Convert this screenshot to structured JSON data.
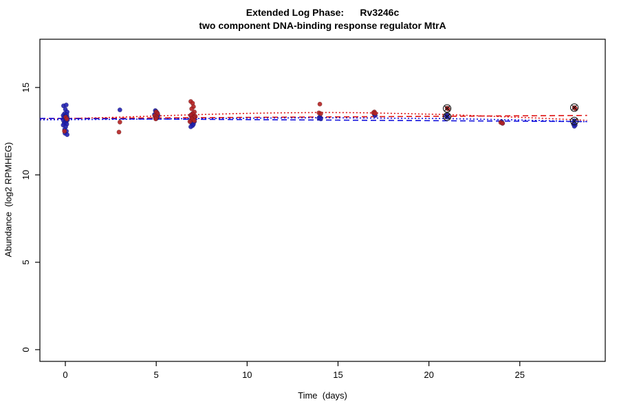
{
  "chart_data": {
    "type": "scatter",
    "title": "Extended Log Phase:      Rv3246c",
    "subtitle": "two component DNA-binding response regulator MtrA",
    "xlabel": "Time  (days)",
    "ylabel": "Abundance  (log2 RPMHEG)",
    "xlim": [
      -1.4,
      29.7
    ],
    "ylim": [
      -0.67,
      17.76
    ],
    "xticks": [
      0,
      5,
      10,
      15,
      20,
      25
    ],
    "yticks": [
      0,
      5,
      10,
      15
    ],
    "grid": false,
    "legend": "none",
    "colors": {
      "blue_points": "#2222b2",
      "red_points": "#b22222",
      "blue_line": "#1111dd",
      "red_line": "#dd1111",
      "axis": "#000000",
      "outlier_mark": "#111111"
    },
    "series": [
      {
        "name": "blue-replicates",
        "color": "#2222b2",
        "points": [
          [
            -0.1,
            13.95
          ],
          [
            0.05,
            14.0
          ],
          [
            0.0,
            13.75
          ],
          [
            0.1,
            13.6
          ],
          [
            -0.05,
            13.5
          ],
          [
            0.08,
            13.45
          ],
          [
            -0.12,
            13.4
          ],
          [
            0.0,
            13.35
          ],
          [
            0.1,
            13.3
          ],
          [
            -0.08,
            13.28
          ],
          [
            0.03,
            13.22
          ],
          [
            -0.03,
            13.18
          ],
          [
            0.12,
            13.15
          ],
          [
            -0.1,
            13.1
          ],
          [
            0.05,
            13.05
          ],
          [
            0.0,
            13.0
          ],
          [
            -0.06,
            12.95
          ],
          [
            0.08,
            12.9
          ],
          [
            -0.12,
            12.85
          ],
          [
            0.02,
            12.75
          ],
          [
            -0.04,
            12.6
          ],
          [
            0.06,
            12.5
          ],
          [
            -0.02,
            12.38
          ],
          [
            0.1,
            12.3
          ],
          [
            3.0,
            13.72
          ],
          [
            4.95,
            13.68
          ],
          [
            5.0,
            13.62
          ],
          [
            5.05,
            13.55
          ],
          [
            4.9,
            13.45
          ],
          [
            5.1,
            13.4
          ],
          [
            5.0,
            13.35
          ],
          [
            4.95,
            13.3
          ],
          [
            5.05,
            13.28
          ],
          [
            5.0,
            13.22
          ],
          [
            7.0,
            13.5
          ],
          [
            6.9,
            13.4
          ],
          [
            7.1,
            13.32
          ],
          [
            6.95,
            13.25
          ],
          [
            7.05,
            13.2
          ],
          [
            7.0,
            13.15
          ],
          [
            6.9,
            13.1
          ],
          [
            7.1,
            13.05
          ],
          [
            7.0,
            13.0
          ],
          [
            6.95,
            12.95
          ],
          [
            7.05,
            12.9
          ],
          [
            7.0,
            12.82
          ],
          [
            6.9,
            12.75
          ],
          [
            14.0,
            13.32
          ],
          [
            13.95,
            13.25
          ],
          [
            14.05,
            13.2
          ],
          [
            17.0,
            13.45
          ],
          [
            17.05,
            13.4
          ],
          [
            21.0,
            13.42
          ],
          [
            20.95,
            13.35
          ],
          [
            21.05,
            13.3
          ],
          [
            24.0,
            13.05
          ],
          [
            24.05,
            12.95
          ],
          [
            28.0,
            13.1
          ],
          [
            27.95,
            12.9
          ],
          [
            28.05,
            12.85
          ],
          [
            28.0,
            12.78
          ]
        ]
      },
      {
        "name": "red-replicates",
        "color": "#b22222",
        "points": [
          [
            0.02,
            13.3
          ],
          [
            -0.05,
            12.5
          ],
          [
            0.08,
            13.2
          ],
          [
            2.95,
            12.45
          ],
          [
            3.0,
            13.02
          ],
          [
            5.0,
            13.6
          ],
          [
            5.08,
            13.5
          ],
          [
            4.92,
            13.38
          ],
          [
            5.02,
            13.3
          ],
          [
            4.97,
            13.2
          ],
          [
            6.9,
            14.2
          ],
          [
            7.0,
            14.1
          ],
          [
            7.05,
            13.9
          ],
          [
            6.95,
            13.78
          ],
          [
            7.1,
            13.6
          ],
          [
            7.0,
            13.5
          ],
          [
            6.9,
            13.42
          ],
          [
            7.15,
            13.35
          ],
          [
            7.05,
            13.28
          ],
          [
            6.95,
            13.22
          ],
          [
            7.0,
            13.15
          ],
          [
            7.1,
            13.1
          ],
          [
            6.85,
            13.05
          ],
          [
            14.0,
            14.05
          ],
          [
            13.95,
            13.55
          ],
          [
            14.05,
            13.5
          ],
          [
            17.0,
            13.6
          ],
          [
            16.95,
            13.55
          ],
          [
            17.05,
            13.52
          ],
          [
            21.0,
            13.82
          ],
          [
            21.05,
            13.78
          ],
          [
            23.95,
            13.0
          ],
          [
            24.05,
            12.95
          ],
          [
            28.0,
            13.85
          ],
          [
            28.05,
            13.8
          ]
        ]
      }
    ],
    "trend_lines": [
      {
        "name": "red-loess",
        "color": "#dd1111",
        "style": "dotted",
        "points": [
          [
            -1.4,
            13.18
          ],
          [
            0,
            13.22
          ],
          [
            3,
            13.3
          ],
          [
            5,
            13.37
          ],
          [
            7,
            13.44
          ],
          [
            10,
            13.52
          ],
          [
            12,
            13.55
          ],
          [
            14,
            13.57
          ],
          [
            16,
            13.56
          ],
          [
            18,
            13.52
          ],
          [
            21,
            13.45
          ],
          [
            24,
            13.33
          ],
          [
            26,
            13.25
          ],
          [
            28.7,
            13.12
          ]
        ]
      },
      {
        "name": "red-linear",
        "color": "#dd1111",
        "style": "dashed",
        "points": [
          [
            -1.4,
            13.22
          ],
          [
            28.7,
            13.4
          ]
        ]
      },
      {
        "name": "blue-loess",
        "color": "#1111dd",
        "style": "dotted",
        "points": [
          [
            -1.4,
            13.15
          ],
          [
            3,
            13.18
          ],
          [
            7,
            13.22
          ],
          [
            14,
            13.27
          ],
          [
            21,
            13.22
          ],
          [
            25,
            13.14
          ],
          [
            28.7,
            13.04
          ]
        ]
      },
      {
        "name": "blue-linear",
        "color": "#1111dd",
        "style": "dashed",
        "points": [
          [
            -1.4,
            13.23
          ],
          [
            28.7,
            13.05
          ]
        ]
      }
    ],
    "outlier_marks": [
      [
        21,
        13.8
      ],
      [
        21,
        13.33
      ],
      [
        28,
        13.85
      ],
      [
        28,
        13.08
      ]
    ]
  }
}
